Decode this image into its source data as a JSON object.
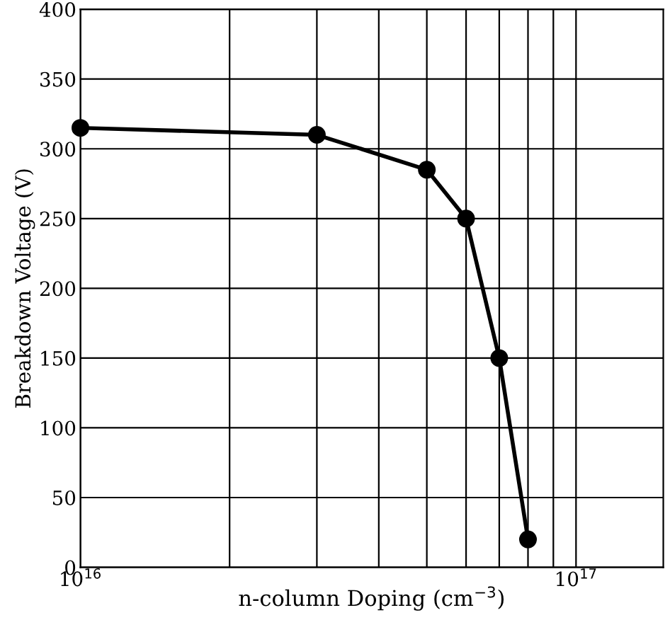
{
  "chart_data": {
    "type": "line",
    "xlabel": "n-column Doping (cm$^{−3}$)",
    "ylabel": "Breakdown Voltage (V)",
    "x": [
      1e+16,
      3e+16,
      5e+16,
      6e+16,
      7e+16,
      8e+16
    ],
    "series": [
      {
        "color": "#000000",
        "values": [
          315,
          310,
          285,
          250,
          150,
          20
        ]
      }
    ],
    "log": "x",
    "xlim": [
      1e+16,
      1.5e+17
    ],
    "xticks": [
      {
        "value": 1e+16,
        "label": "10$^{16}$"
      },
      {
        "value": 2e+16,
        "label": null
      },
      {
        "value": 3e+16,
        "label": null
      },
      {
        "value": 4e+16,
        "label": null
      },
      {
        "value": 5e+16,
        "label": null
      },
      {
        "value": 6e+16,
        "label": null
      },
      {
        "value": 7e+16,
        "label": null
      },
      {
        "value": 8e+16,
        "label": null
      },
      {
        "value": 9e+16,
        "label": null
      },
      {
        "value": 1e+17,
        "label": "10$^{17}$"
      }
    ],
    "ylim": [
      0,
      400
    ],
    "yticks": [
      0,
      50,
      100,
      150,
      200,
      250,
      300,
      350,
      400
    ],
    "grid": true,
    "marker": "circle",
    "line_style": "solid"
  }
}
